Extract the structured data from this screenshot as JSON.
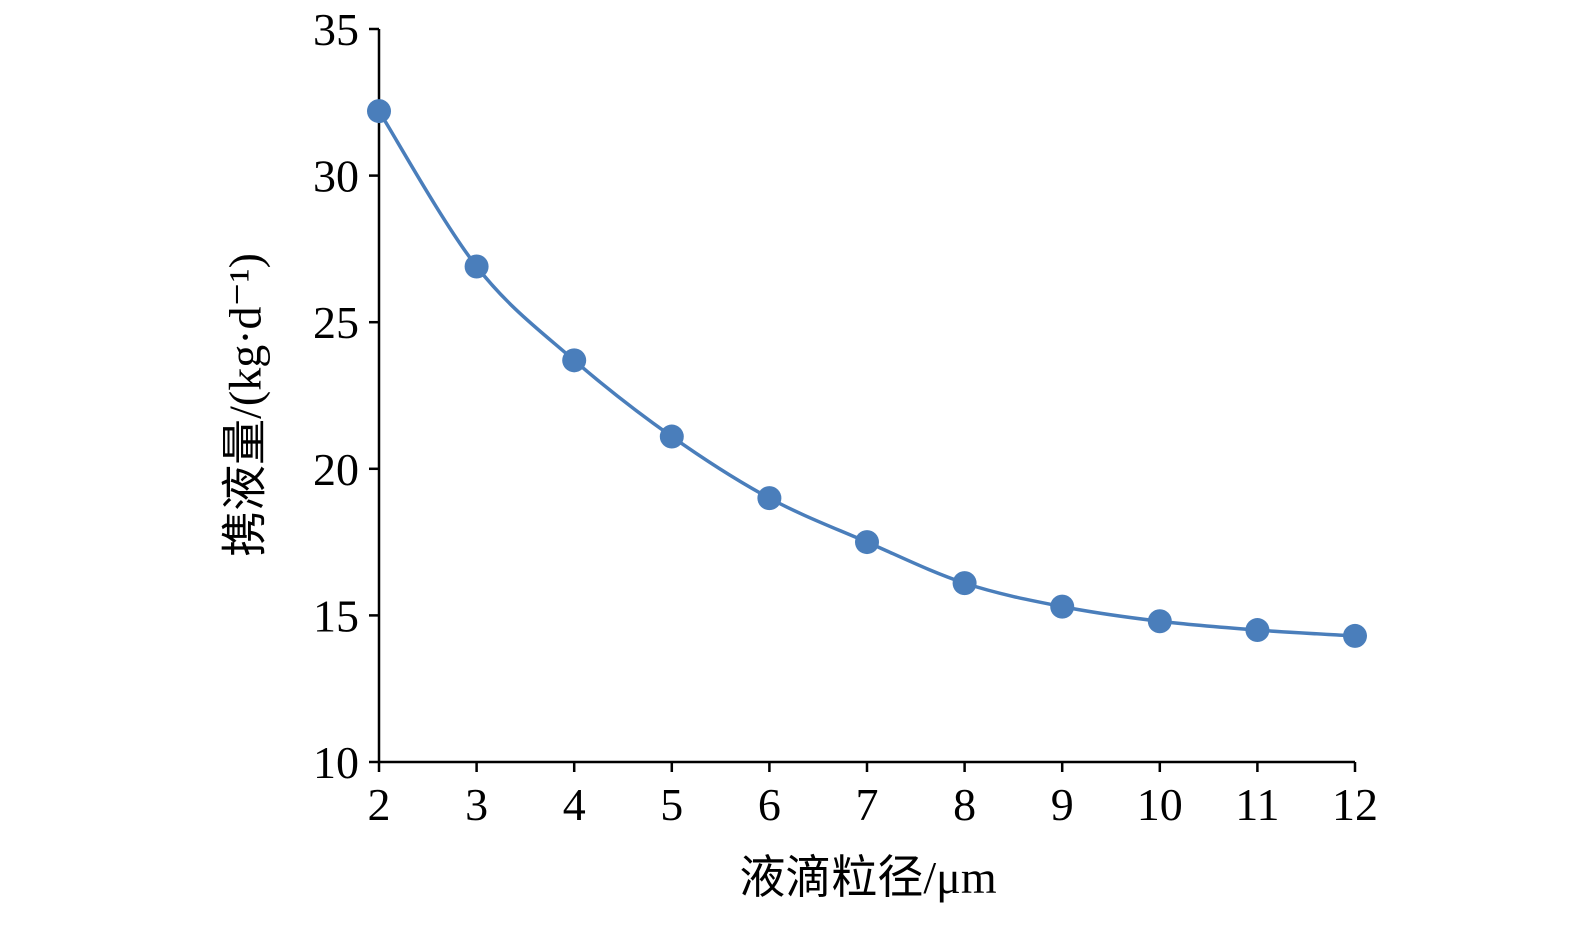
{
  "chart_data": {
    "type": "line",
    "x_label": "液滴粒径/μm",
    "y_label": "携液量/(kg·d⁻¹)",
    "x": [
      2,
      3,
      4,
      5,
      6,
      7,
      8,
      9,
      10,
      11,
      12
    ],
    "series": [
      {
        "color": "#4a7ebb",
        "values": [
          32.2,
          26.9,
          23.7,
          21.1,
          19.0,
          17.5,
          16.1,
          15.3,
          14.8,
          14.5,
          14.3
        ]
      }
    ],
    "xlim": [
      2,
      12
    ],
    "xticks": [
      2,
      3,
      4,
      5,
      6,
      7,
      8,
      9,
      10,
      11,
      12
    ],
    "ylim": [
      10,
      35
    ],
    "yticks": [
      10,
      15,
      20,
      25,
      30,
      35
    ],
    "smooth": true,
    "markers": true
  }
}
